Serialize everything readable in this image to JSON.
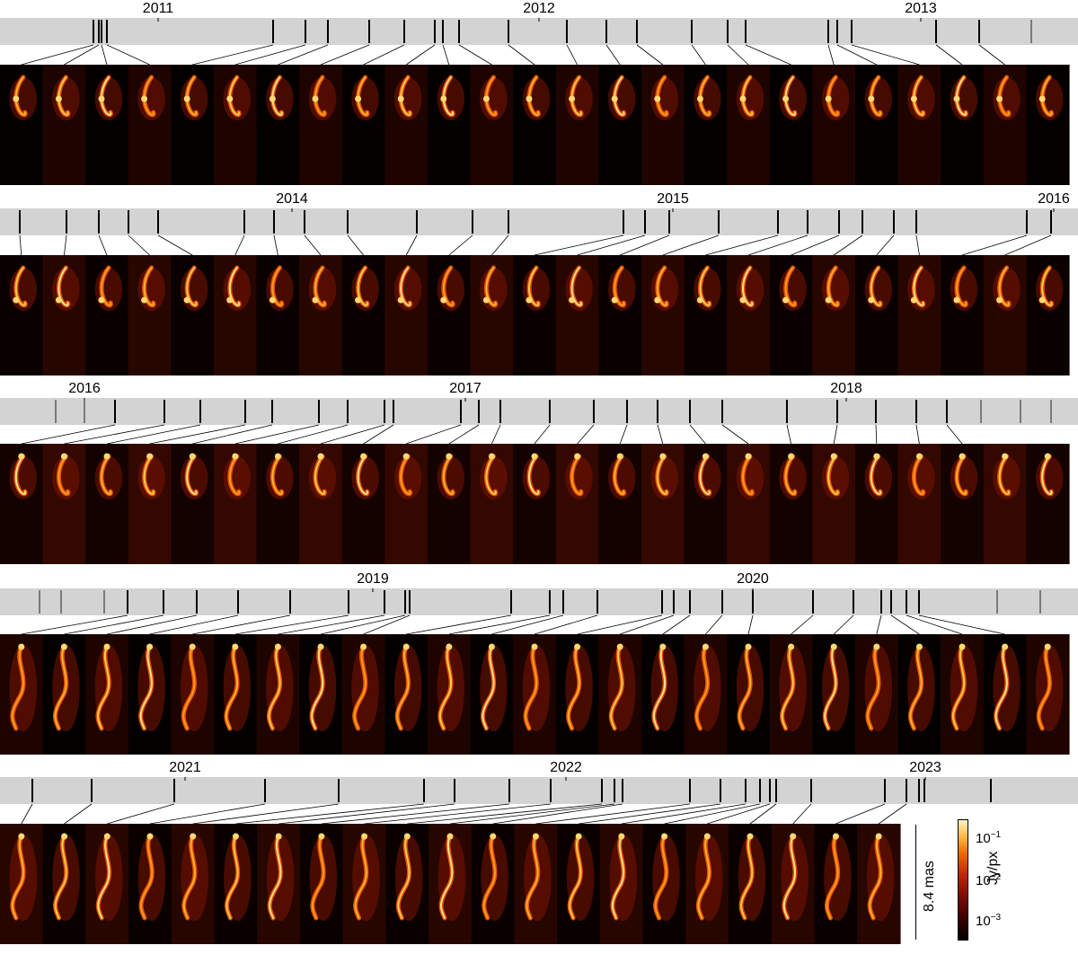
{
  "rows": [
    {
      "years": [
        "2011",
        "2012",
        "2013"
      ],
      "panel_count": 25
    },
    {
      "years": [
        "2014",
        "2015",
        "2016"
      ],
      "panel_count": 25
    },
    {
      "years": [
        "2016",
        "2017",
        "2018"
      ],
      "panel_count": 25
    },
    {
      "years": [
        "2019",
        "2020"
      ],
      "panel_count": 25
    },
    {
      "years": [
        "2021",
        "2022",
        "2023"
      ],
      "panel_count": 21
    }
  ],
  "colorbar": {
    "label": "Jy/px",
    "ticks": [
      {
        "base": "10",
        "exp": "−1"
      },
      {
        "base": "10",
        "exp": "−2"
      },
      {
        "base": "10",
        "exp": "−3"
      }
    ],
    "colors": [
      "#000000",
      "#7a0800",
      "#ee6a00",
      "#fff4c8"
    ]
  },
  "scale_bar": {
    "label": "8.4 mas"
  }
}
